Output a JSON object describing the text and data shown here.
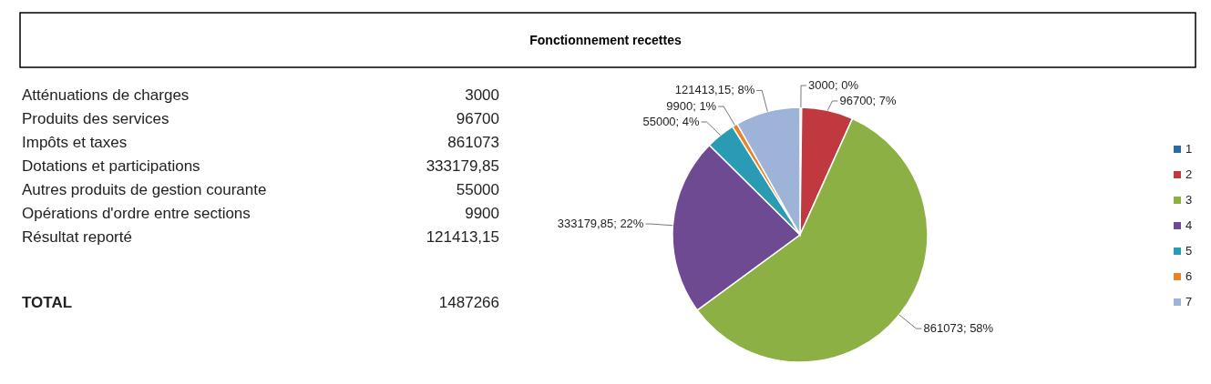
{
  "chart_data": {
    "type": "pie",
    "title": "Fonctionnement recettes",
    "categories": [
      "1",
      "2",
      "3",
      "4",
      "5",
      "6",
      "7"
    ],
    "values": [
      3000,
      96700,
      861073,
      333179.85,
      55000,
      9900,
      121413.15
    ],
    "colors": [
      "#2c6b9a",
      "#c0393f",
      "#8cb043",
      "#6d4a92",
      "#2a9bb2",
      "#e8822a",
      "#9db3d8"
    ],
    "value_labels": [
      "3000; 0%",
      "96700; 7%",
      "861073; 58%",
      "333179,85; 22%",
      "55000; 4%",
      "9900; 1%",
      "121413,15; 8%"
    ],
    "legend": "right",
    "annotations": [
      "Atténuations de charges",
      "3000",
      "Produits des services",
      "96700",
      "Impôts et taxes",
      "861073",
      "Dotations et participations",
      "333179,85",
      "Autres produits de gestion courante",
      "55000",
      "Opérations d'ordre entre sections",
      "9900",
      "Résultat reporté",
      "121413,15",
      "TOTAL",
      "1487266"
    ]
  }
}
